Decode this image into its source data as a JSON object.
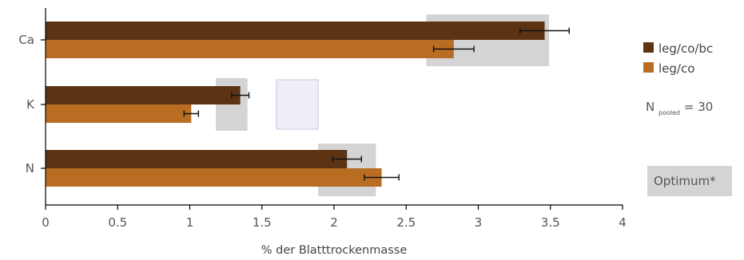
{
  "chart_data": {
    "type": "bar",
    "orientation": "horizontal",
    "categories": [
      "Ca",
      "K",
      "N"
    ],
    "series": [
      {
        "name": "leg/co/bc",
        "color": "#5c3414",
        "values": [
          3.46,
          1.35,
          2.09
        ],
        "errors": [
          0.17,
          0.06,
          0.1
        ]
      },
      {
        "name": "leg/co",
        "color": "#b86d23",
        "values": [
          2.83,
          1.01,
          2.33
        ],
        "errors": [
          0.14,
          0.05,
          0.12
        ]
      }
    ],
    "optimum_ranges": [
      {
        "category": "Ca",
        "min": 2.64,
        "max": 3.49
      },
      {
        "category": "K",
        "min": 1.18,
        "max": 1.4
      },
      {
        "category": "N",
        "min": 1.89,
        "max": 2.29
      }
    ],
    "highlight_box": {
      "category": "K",
      "min": 1.6,
      "max": 1.89
    },
    "xlabel": "% der Blatttrockenmasse",
    "xlim": [
      0,
      4
    ],
    "xticks": [
      "0",
      "0.5",
      "1",
      "1.5",
      "2",
      "2.5",
      "3",
      "3.5",
      "4"
    ],
    "grid": false,
    "legend_position": "right",
    "optimum_color": "#d4d4d4",
    "highlight_color": "#eeeef6"
  },
  "annotations": {
    "n_prefix": "N ",
    "n_subscript": "pooled",
    "n_suffix": " = 30",
    "optimum_label": "Optimum*"
  }
}
